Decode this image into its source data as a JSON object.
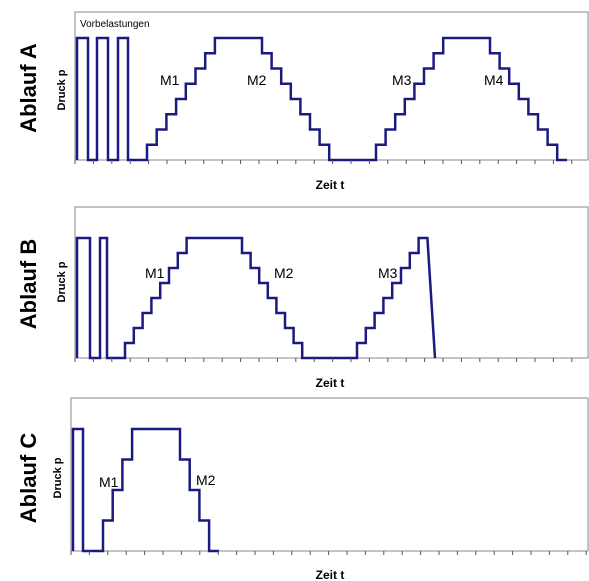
{
  "panels": [
    {
      "title": "Ablauf A",
      "y_label": "Druck p",
      "x_label": "Zeit t",
      "annotation": "Vorbelastungen",
      "markers": [
        "M1",
        "M2",
        "M3",
        "M4"
      ]
    },
    {
      "title": "Ablauf B",
      "y_label": "Druck p",
      "x_label": "Zeit t",
      "markers": [
        "M1",
        "M2",
        "M3"
      ]
    },
    {
      "title": "Ablauf C",
      "y_label": "Druck p",
      "x_label": "Zeit t",
      "markers": [
        "M1",
        "M2"
      ]
    }
  ]
}
